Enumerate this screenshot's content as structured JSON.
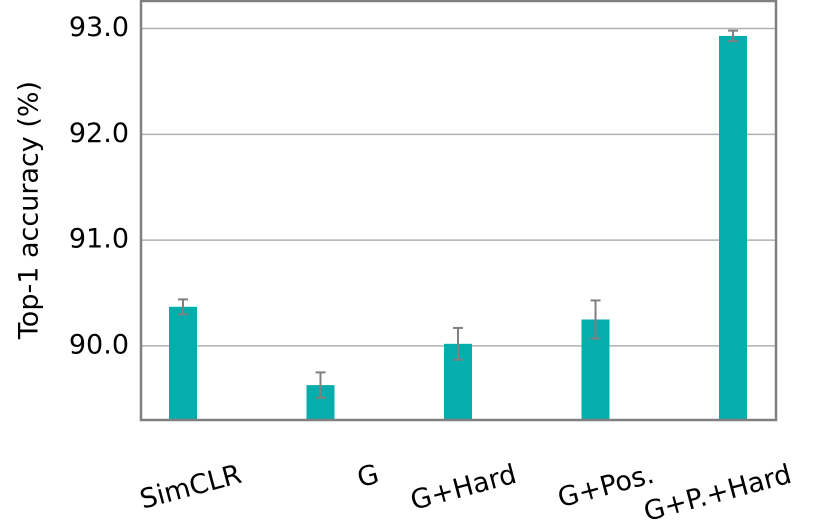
{
  "chart_data": {
    "type": "bar",
    "y_label": "Top-1 accuracy (%)",
    "categories": [
      "SimCLR",
      "G",
      "G+Hard",
      "G+Pos.",
      "G+P.+Hard"
    ],
    "values": [
      90.37,
      89.63,
      90.02,
      90.25,
      92.93
    ],
    "errors": [
      0.07,
      0.12,
      0.15,
      0.18,
      0.05
    ],
    "color": "#06adad",
    "error_color": "#808080",
    "ylim": [
      89.3,
      93.26
    ],
    "yticks": [
      {
        "value": 90,
        "label": "90.0"
      },
      {
        "value": 91,
        "label": "91.0"
      },
      {
        "value": 92,
        "label": "92.0"
      },
      {
        "value": 93,
        "label": "93.0"
      }
    ],
    "grid": true
  }
}
